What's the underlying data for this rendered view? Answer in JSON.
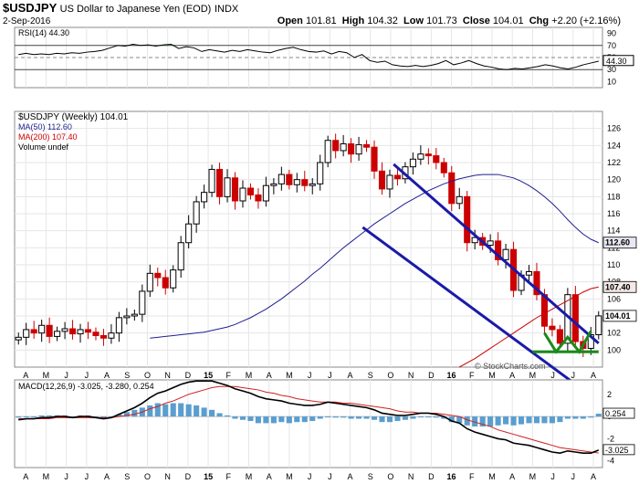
{
  "header": {
    "symbol": "$USDJPY",
    "description": "US Dollar to Japanese Yen (EOD)",
    "exchange": "INDX",
    "date": "2-Sep-2016",
    "open_label": "Open",
    "open": "101.81",
    "high_label": "High",
    "high": "104.32",
    "low_label": "Low",
    "low": "101.73",
    "close_label": "Close",
    "close": "104.01",
    "chg_label": "Chg",
    "chg": "+2.20 (+2.16%)",
    "watermark": "© StockCharts.com"
  },
  "colors": {
    "up": "#000000",
    "down": "#cc0000",
    "ma50": "#1f1f8f",
    "ma200": "#cc0000",
    "channel": "#1a1aa8",
    "pattern": "#1a8a1a",
    "macd_hist": "#5a9ecf",
    "rsi_fill": "#5a8a5a"
  },
  "chart_data": [
    {
      "panel": "rsi",
      "type": "line",
      "legend": "RSI(14) 44.30",
      "ylim": [
        0,
        100
      ],
      "yticks": [
        10,
        30,
        50,
        70,
        90
      ],
      "levels": [
        30,
        50,
        70
      ],
      "current_value": "44.30",
      "values": [
        55,
        57,
        55,
        56,
        55,
        57,
        56,
        58,
        57,
        59,
        60,
        62,
        66,
        70,
        69,
        72,
        70,
        71,
        69,
        71,
        72,
        65,
        68,
        66,
        60,
        63,
        61,
        59,
        62,
        60,
        63,
        61,
        59,
        58,
        62,
        65,
        67,
        63,
        60,
        59,
        61,
        56,
        60,
        58,
        50,
        55,
        45,
        42,
        44,
        38,
        36,
        35,
        37,
        35,
        37,
        40,
        45,
        38,
        41,
        45,
        40,
        36,
        34,
        31,
        30,
        32,
        31,
        33,
        35,
        38,
        36,
        33,
        31,
        34,
        38,
        41,
        44
      ]
    },
    {
      "panel": "price",
      "type": "candlestick",
      "legend": [
        "$USDJPY (Weekly) 104.01",
        "MA(50) 112.60",
        "MA(200) 107.40",
        "Volume undef"
      ],
      "x_labels": [
        "A",
        "M",
        "J",
        "J",
        "A",
        "S",
        "O",
        "N",
        "D",
        "15",
        "F",
        "M",
        "A",
        "M",
        "J",
        "J",
        "A",
        "S",
        "O",
        "N",
        "D",
        "16",
        "F",
        "M",
        "A",
        "M",
        "J",
        "J",
        "A"
      ],
      "ylim": [
        98,
        128
      ],
      "yticks": [
        100,
        102,
        104,
        106,
        108,
        110,
        112,
        114,
        116,
        118,
        120,
        122,
        124,
        126
      ],
      "last_value": "104.01",
      "ma50_label": "112.60",
      "ma200_label": "107.40",
      "closes": [
        101.5,
        102.4,
        102.0,
        102.9,
        101.6,
        102.2,
        102.5,
        101.9,
        102.4,
        102.1,
        101.7,
        101.4,
        102.0,
        103.8,
        104.0,
        104.2,
        106.9,
        109.0,
        108.5,
        107.3,
        109.4,
        112.6,
        114.8,
        117.4,
        118.5,
        121.2,
        118.0,
        120.2,
        117.5,
        119.0,
        118.2,
        117.5,
        119.3,
        119.5,
        120.6,
        119.4,
        120.0,
        119.3,
        119.5,
        122.0,
        124.6,
        123.4,
        124.2,
        123.0,
        124.1,
        123.8,
        121.0,
        118.9,
        120.5,
        120.1,
        121.5,
        122.4,
        123.0,
        122.8,
        122.0,
        120.8,
        117.2,
        118.0,
        112.6,
        113.2,
        112.3,
        112.8,
        110.6,
        111.8,
        107.0,
        108.8,
        109.2,
        106.5,
        102.8,
        102.4,
        100.8,
        106.5,
        101.0,
        100.2,
        101.8,
        104.01
      ],
      "ma50": [
        101.4,
        101.5,
        101.6,
        101.7,
        101.8,
        101.9,
        102.0,
        102.1,
        102.3,
        102.5,
        102.7,
        103.0,
        103.4,
        103.8,
        104.3,
        104.8,
        105.4,
        106.0,
        106.7,
        107.4,
        108.1,
        108.9,
        109.6,
        110.4,
        111.2,
        112.0,
        112.7,
        113.4,
        114.1,
        114.8,
        115.4,
        116.0,
        116.6,
        117.2,
        117.7,
        118.2,
        118.7,
        119.1,
        119.5,
        119.8,
        120.1,
        120.3,
        120.5,
        120.6,
        120.6,
        120.6,
        120.4,
        120.2,
        119.8,
        119.3,
        118.7,
        118.0,
        117.2,
        116.3,
        115.3,
        114.4,
        113.6,
        113.0,
        112.6
      ],
      "ma50_start_index": 17,
      "ma200": [
        98.0,
        98.5,
        99.0,
        99.6,
        100.2,
        100.8,
        101.4,
        102.0,
        102.6,
        103.2,
        103.8,
        104.3,
        104.8,
        105.3,
        105.8,
        106.3,
        106.8,
        107.2,
        107.4
      ],
      "ma200_start_index": 57,
      "channel_upper": [
        [
          48.5,
          121.8
        ],
        [
          75,
          100.8
        ]
      ],
      "channel_lower": [
        [
          44.5,
          114.4
        ],
        [
          72,
          96.0
        ]
      ]
    },
    {
      "panel": "macd",
      "type": "line",
      "legend": "MACD(12,26,9) -3.025, -3.280, 0.254",
      "ylim": [
        -4.6,
        3.3
      ],
      "yticks": [
        2,
        0,
        -2,
        -4
      ],
      "macd_label": "-3.025",
      "hist_label": "0.254",
      "macd": [
        -0.3,
        -0.2,
        -0.2,
        -0.1,
        -0.1,
        0.0,
        0.0,
        -0.1,
        0.0,
        0.0,
        -0.1,
        -0.2,
        -0.1,
        0.2,
        0.5,
        0.8,
        1.2,
        1.7,
        2.1,
        2.3,
        2.6,
        2.9,
        3.1,
        3.2,
        3.2,
        3.2,
        3.0,
        2.8,
        2.5,
        2.3,
        2.1,
        1.8,
        1.6,
        1.5,
        1.4,
        1.2,
        1.1,
        1.0,
        1.0,
        1.1,
        1.3,
        1.2,
        1.1,
        1.0,
        0.9,
        0.8,
        0.6,
        0.3,
        0.2,
        0.1,
        0.1,
        0.2,
        0.3,
        0.3,
        0.2,
        0.0,
        -0.4,
        -0.6,
        -1.1,
        -1.4,
        -1.6,
        -1.8,
        -2.0,
        -2.1,
        -2.4,
        -2.5,
        -2.6,
        -2.8,
        -3.0,
        -3.2,
        -3.3,
        -3.1,
        -3.2,
        -3.3,
        -3.3,
        -3.025
      ],
      "signal": [
        -0.2,
        -0.2,
        -0.2,
        -0.2,
        -0.2,
        -0.1,
        -0.1,
        -0.1,
        -0.1,
        -0.1,
        -0.1,
        -0.1,
        -0.1,
        0.0,
        0.1,
        0.2,
        0.4,
        0.7,
        0.9,
        1.2,
        1.4,
        1.7,
        2.0,
        2.2,
        2.4,
        2.6,
        2.7,
        2.7,
        2.7,
        2.6,
        2.5,
        2.4,
        2.2,
        2.1,
        1.9,
        1.8,
        1.6,
        1.5,
        1.4,
        1.3,
        1.3,
        1.3,
        1.2,
        1.2,
        1.1,
        1.0,
        0.9,
        0.8,
        0.7,
        0.5,
        0.4,
        0.4,
        0.3,
        0.3,
        0.3,
        0.2,
        0.1,
        0.0,
        -0.3,
        -0.5,
        -0.7,
        -0.9,
        -1.2,
        -1.4,
        -1.6,
        -1.8,
        -2.0,
        -2.2,
        -2.4,
        -2.6,
        -2.8,
        -2.9,
        -3.0,
        -3.1,
        -3.2,
        -3.28
      ]
    }
  ]
}
